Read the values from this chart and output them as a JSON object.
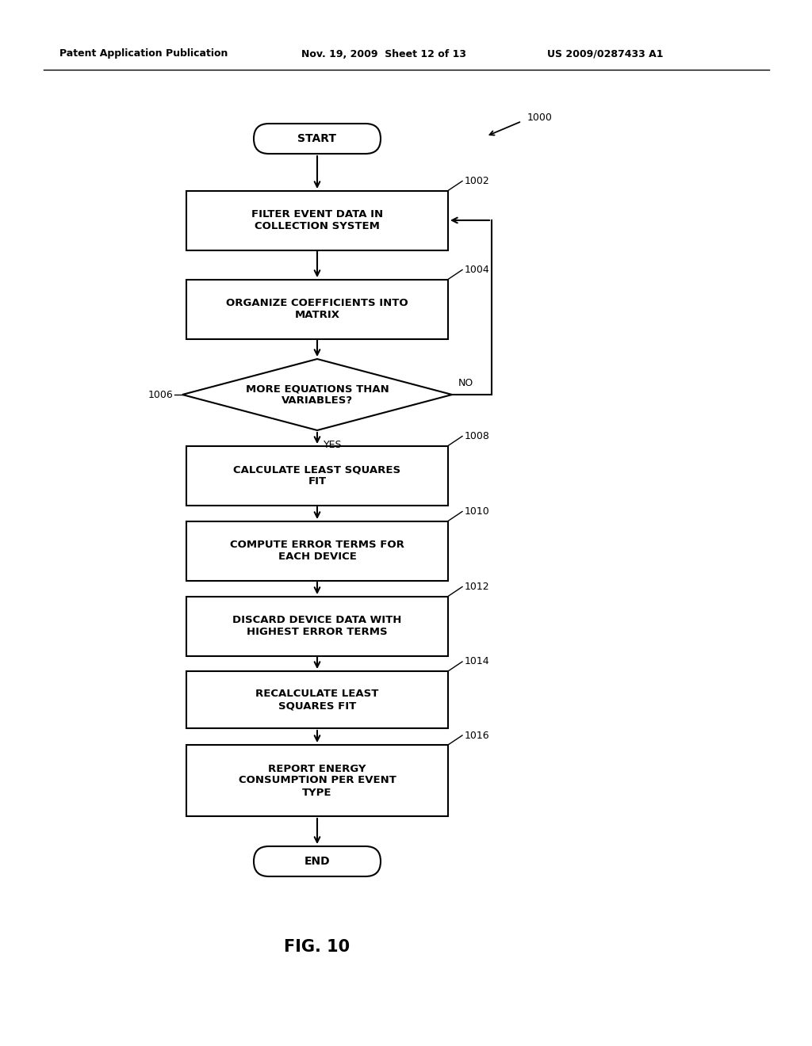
{
  "header_left": "Patent Application Publication",
  "header_mid": "Nov. 19, 2009  Sheet 12 of 13",
  "header_right": "US 2009/0287433 A1",
  "figure_label": "FIG. 10",
  "diagram_number": "1000",
  "bg_color": "#ffffff",
  "text_color": "#000000",
  "node_labels": {
    "start": "START",
    "1002": "FILTER EVENT DATA IN\nCOLLECTION SYSTEM",
    "1004": "ORGANIZE COEFFICIENTS INTO\nMATRIX",
    "1006": "MORE EQUATIONS THAN\nVARIABLES?",
    "1008": "CALCULATE LEAST SQUARES\nFIT",
    "1010": "COMPUTE ERROR TERMS FOR\nEACH DEVICE",
    "1012": "DISCARD DEVICE DATA WITH\nHIGHEST ERROR TERMS",
    "1014": "RECALCULATE LEAST\nSQUARES FIT",
    "1016": "REPORT ENERGY\nCONSUMPTION PER EVENT\nTYPE",
    "end": "END"
  }
}
